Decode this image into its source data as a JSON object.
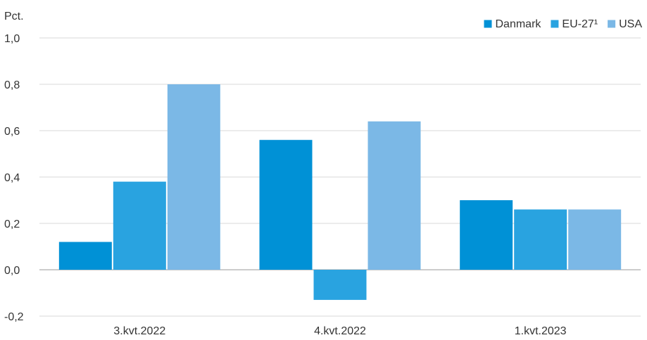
{
  "chart_data": {
    "type": "bar",
    "ylabel": "Pct.",
    "categories": [
      "3.kvt.2022",
      "4.kvt.2022",
      "1.kvt.2023"
    ],
    "series": [
      {
        "name": "Danmark",
        "values": [
          0.12,
          0.56,
          0.3
        ],
        "color": "#0091d6"
      },
      {
        "name": "EU-27¹",
        "values": [
          0.38,
          -0.13,
          0.26
        ],
        "color": "#29a3e0"
      },
      {
        "name": "USA",
        "values": [
          0.8,
          0.64,
          0.26
        ],
        "color": "#7bb8e6"
      }
    ],
    "ylim": [
      -0.2,
      1.0
    ],
    "yticks": [
      "-0,2",
      "0,0",
      "0,2",
      "0,4",
      "0,6",
      "0,8",
      "1,0"
    ],
    "grid": true,
    "legend_position": "top-right"
  }
}
